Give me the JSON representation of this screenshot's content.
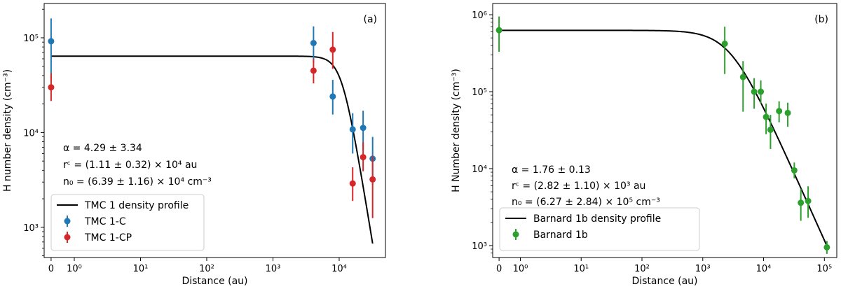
{
  "chart_data": [
    {
      "type": "scatter",
      "panel_label": "(a)",
      "xlabel": "Distance (au)",
      "ylabel": "H number density (cm⁻³)",
      "xscale": "symlog",
      "yscale": "log",
      "xticks": [
        {
          "value": 0,
          "label": "0"
        },
        {
          "value": 1,
          "label": "10⁰"
        },
        {
          "value": 10,
          "label": "10¹"
        },
        {
          "value": 100,
          "label": "10²"
        },
        {
          "value": 1000,
          "label": "10³"
        },
        {
          "value": 10000,
          "label": "10⁴"
        }
      ],
      "yticks": [
        {
          "value": 1000,
          "label": "10³"
        },
        {
          "value": 10000,
          "label": "10⁴"
        },
        {
          "value": 100000,
          "label": "10⁵"
        }
      ],
      "xlim": [
        -0.3,
        50000
      ],
      "ylim": [
        480,
        230000
      ],
      "series": [
        {
          "name": "TMC 1-C",
          "color": "#1f77b4",
          "points": [
            {
              "x": 0,
              "y": 92000,
              "yerr_low": 35000,
              "yerr_high": 160000
            },
            {
              "x": 4100,
              "y": 88000,
              "yerr_low": 55000,
              "yerr_high": 132000
            },
            {
              "x": 8000,
              "y": 24000,
              "yerr_low": 15500,
              "yerr_high": 36000
            },
            {
              "x": 16000,
              "y": 10800,
              "yerr_low": 6000,
              "yerr_high": 16000
            },
            {
              "x": 23000,
              "y": 11200,
              "yerr_low": 6500,
              "yerr_high": 17000
            },
            {
              "x": 32000,
              "y": 5300,
              "yerr_low": 2800,
              "yerr_high": 9000
            }
          ]
        },
        {
          "name": "TMC 1-CP",
          "color": "#d62728",
          "points": [
            {
              "x": 0,
              "y": 30000,
              "yerr_low": 21500,
              "yerr_high": 42000
            },
            {
              "x": 4100,
              "y": 45000,
              "yerr_low": 33000,
              "yerr_high": 60000
            },
            {
              "x": 8000,
              "y": 75000,
              "yerr_low": 47000,
              "yerr_high": 115000
            },
            {
              "x": 16000,
              "y": 2900,
              "yerr_low": 1900,
              "yerr_high": 4300
            },
            {
              "x": 23000,
              "y": 5500,
              "yerr_low": 3900,
              "yerr_high": 7900
            },
            {
              "x": 32000,
              "y": 3200,
              "yerr_low": 1250,
              "yerr_high": 5700
            }
          ]
        }
      ],
      "model": {
        "name": "TMC 1 density profile",
        "color": "#000000",
        "n0": 64000,
        "rc": 11100,
        "alpha": 4.29,
        "x_start": 0,
        "x_end": 32000
      },
      "annotations": [
        "α = 4.29 ± 3.34",
        "rᶜ = (1.11 ± 0.32) × 10⁴ au",
        "n₀ = (6.39 ± 1.16) × 10⁴ cm⁻³"
      ],
      "legend_placement": "bottom-left"
    },
    {
      "type": "scatter",
      "panel_label": "(b)",
      "xlabel": "Distance (au)",
      "ylabel": "H Number density (cm⁻³)",
      "xscale": "symlog",
      "yscale": "log",
      "xticks": [
        {
          "value": 0,
          "label": "0"
        },
        {
          "value": 1,
          "label": "10⁰"
        },
        {
          "value": 10,
          "label": "10¹"
        },
        {
          "value": 100,
          "label": "10²"
        },
        {
          "value": 1000,
          "label": "10³"
        },
        {
          "value": 10000,
          "label": "10⁴"
        },
        {
          "value": 100000,
          "label": "10⁵"
        }
      ],
      "yticks": [
        {
          "value": 1000,
          "label": "10³"
        },
        {
          "value": 10000,
          "label": "10⁴"
        },
        {
          "value": 100000,
          "label": "10⁵"
        },
        {
          "value": 1000000,
          "label": "10⁶"
        }
      ],
      "xlim": [
        -0.3,
        160000
      ],
      "ylim": [
        700,
        1400000
      ],
      "series": [
        {
          "name": "Barnard 1b",
          "color": "#2ca02c",
          "points": [
            {
              "x": 0,
              "y": 630000,
              "yerr_low": 330000,
              "yerr_high": 950000
            },
            {
              "x": 2300,
              "y": 420000,
              "yerr_low": 170000,
              "yerr_high": 700000
            },
            {
              "x": 4600,
              "y": 155000,
              "yerr_low": 55000,
              "yerr_high": 250000
            },
            {
              "x": 7000,
              "y": 100000,
              "yerr_low": 60000,
              "yerr_high": 150000
            },
            {
              "x": 9000,
              "y": 100000,
              "yerr_low": 70000,
              "yerr_high": 140000
            },
            {
              "x": 11000,
              "y": 47000,
              "yerr_low": 28000,
              "yerr_high": 70000
            },
            {
              "x": 13000,
              "y": 32000,
              "yerr_low": 18000,
              "yerr_high": 50000
            },
            {
              "x": 18000,
              "y": 56000,
              "yerr_low": 40000,
              "yerr_high": 75000
            },
            {
              "x": 25000,
              "y": 53000,
              "yerr_low": 35000,
              "yerr_high": 72000
            },
            {
              "x": 32000,
              "y": 9500,
              "yerr_low": 7500,
              "yerr_high": 12000
            },
            {
              "x": 41000,
              "y": 3600,
              "yerr_low": 2100,
              "yerr_high": 5500
            },
            {
              "x": 54000,
              "y": 3800,
              "yerr_low": 2300,
              "yerr_high": 5900
            },
            {
              "x": 110000,
              "y": 950,
              "yerr_low": 780,
              "yerr_high": 1150
            }
          ]
        }
      ],
      "model": {
        "name": "Barnard 1b density profile",
        "color": "#000000",
        "n0": 627000,
        "rc": 2820,
        "alpha": 1.76,
        "x_start": 0,
        "x_end": 115000
      },
      "annotations": [
        "α = 1.76 ± 0.13",
        "rᶜ = (2.82 ± 1.10) × 10³ au",
        "n₀ = (6.27 ± 2.84) × 10⁵ cm⁻³"
      ],
      "legend_placement": "bottom-left"
    }
  ]
}
